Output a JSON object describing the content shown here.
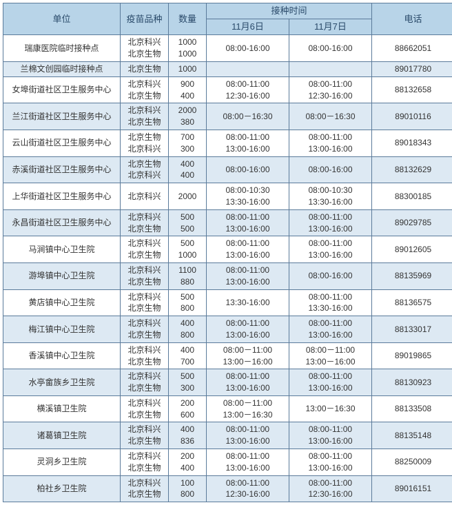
{
  "header": {
    "unit": "单位",
    "vaccine": "疫苗品种",
    "qty": "数量",
    "time": "接种时间",
    "date1": "11月6日",
    "date2": "11月7日",
    "phone": "电话"
  },
  "rows": [
    {
      "unit": "瑞康医院临时接种点",
      "vaccine": "北京科兴\n北京生物",
      "qty": "1000\n1000",
      "t1": "08:00-16:00",
      "t2": "08:00-16:00",
      "phone": "88662051"
    },
    {
      "unit": "兰棉文创园临时接种点",
      "vaccine": "北京生物",
      "qty": "1000",
      "t1": "",
      "t2": "",
      "phone": "89017780"
    },
    {
      "unit": "女埠街道社区卫生服务中心",
      "vaccine": "北京科兴\n北京生物",
      "qty": "900\n400",
      "t1": "08:00-11:00\n12:30-16:00",
      "t2": "08:00-11:00\n12:30-16:00",
      "phone": "88132658"
    },
    {
      "unit": "兰江街道社区卫生服务中心",
      "vaccine": "北京科兴\n北京生物",
      "qty": "2000\n380",
      "t1": "08:00－16:30",
      "t2": "08:00－16:30",
      "phone": "89010116"
    },
    {
      "unit": "云山街道社区卫生服务中心",
      "vaccine": "北京生物\n北京科兴",
      "qty": "700\n300",
      "t1": "08:00-11:00\n13:00-16:00",
      "t2": "08:00-11:00\n13:00-16:00",
      "phone": "89018343"
    },
    {
      "unit": "赤溪街道社区卫生服务中心",
      "vaccine": "北京生物\n北京科兴",
      "qty": "400\n400",
      "t1": "08:00-16:00",
      "t2": "08:00-16:00",
      "phone": "88132629"
    },
    {
      "unit": "上华街道社区卫生服务中心",
      "vaccine": "北京科兴",
      "qty": "2000",
      "t1": "08:00-10:30\n13:30-16:00",
      "t2": "08:00-10:30\n13:30-16:00",
      "phone": "88300185"
    },
    {
      "unit": "永昌街道社区卫生服务中心",
      "vaccine": "北京科兴\n北京生物",
      "qty": "500\n500",
      "t1": "08:00-11:00\n13:00-16:00",
      "t2": "08:00-11:00\n13:00-16:00",
      "phone": "89029785"
    },
    {
      "unit": "马涧镇中心卫生院",
      "vaccine": "北京科兴\n北京生物",
      "qty": "500\n1000",
      "t1": "08:00-11:00\n13:00-16:00",
      "t2": "08:00-11:00\n13:00-16:00",
      "phone": "89012605"
    },
    {
      "unit": "游埠镇中心卫生院",
      "vaccine": "北京科兴\n北京生物",
      "qty": "1100\n880",
      "t1": "08:00-11:00\n13:00-16:00",
      "t2": "08:00-16:00",
      "phone": "88135969"
    },
    {
      "unit": "黄店镇中心卫生院",
      "vaccine": "北京科兴\n北京生物",
      "qty": "500\n800",
      "t1": "13:30-16:00",
      "t2": "08:00-11:00\n13:30-16:00",
      "phone": "88136575"
    },
    {
      "unit": "梅江镇中心卫生院",
      "vaccine": "北京科兴\n北京生物",
      "qty": "400\n800",
      "t1": "08:00-11:00\n13:00-16:00",
      "t2": "08:00-11:00\n13:00-16:00",
      "phone": "88133017"
    },
    {
      "unit": "香溪镇中心卫生院",
      "vaccine": "北京科兴\n北京生物",
      "qty": "400\n700",
      "t1": "08:00－11:00\n13:00－16:00",
      "t2": "08:00－11:00\n13:00－16:00",
      "phone": "89019865"
    },
    {
      "unit": "水亭畲族乡卫生院",
      "vaccine": "北京科兴\n北京生物",
      "qty": "500\n300",
      "t1": "08:00-11:00\n13:00-16:00",
      "t2": "08:00-11:00\n13:00-16:00",
      "phone": "88130923"
    },
    {
      "unit": "横溪镇卫生院",
      "vaccine": "北京科兴\n北京生物",
      "qty": "200\n600",
      "t1": "08:00－11:00\n13:00－16:30",
      "t2": "13:00－16:30",
      "phone": "88133508"
    },
    {
      "unit": "诸葛镇卫生院",
      "vaccine": "北京科兴\n北京生物",
      "qty": "400\n836",
      "t1": "08:00-11:00\n13:00-16:00",
      "t2": "08:00-11:00\n13:00-16:00",
      "phone": "88135148"
    },
    {
      "unit": "灵洞乡卫生院",
      "vaccine": "北京科兴\n北京生物",
      "qty": "200\n400",
      "t1": "08:00-11:00\n13:00-16:00",
      "t2": "08:00-11:00\n13:00-16:00",
      "phone": "88250009"
    },
    {
      "unit": "柏社乡卫生院",
      "vaccine": "北京科兴\n北京生物",
      "qty": "100\n800",
      "t1": "08:00-11:00\n12:30-16:00",
      "t2": "08:00-11:00\n12:30-16:00",
      "phone": "89016151"
    }
  ]
}
